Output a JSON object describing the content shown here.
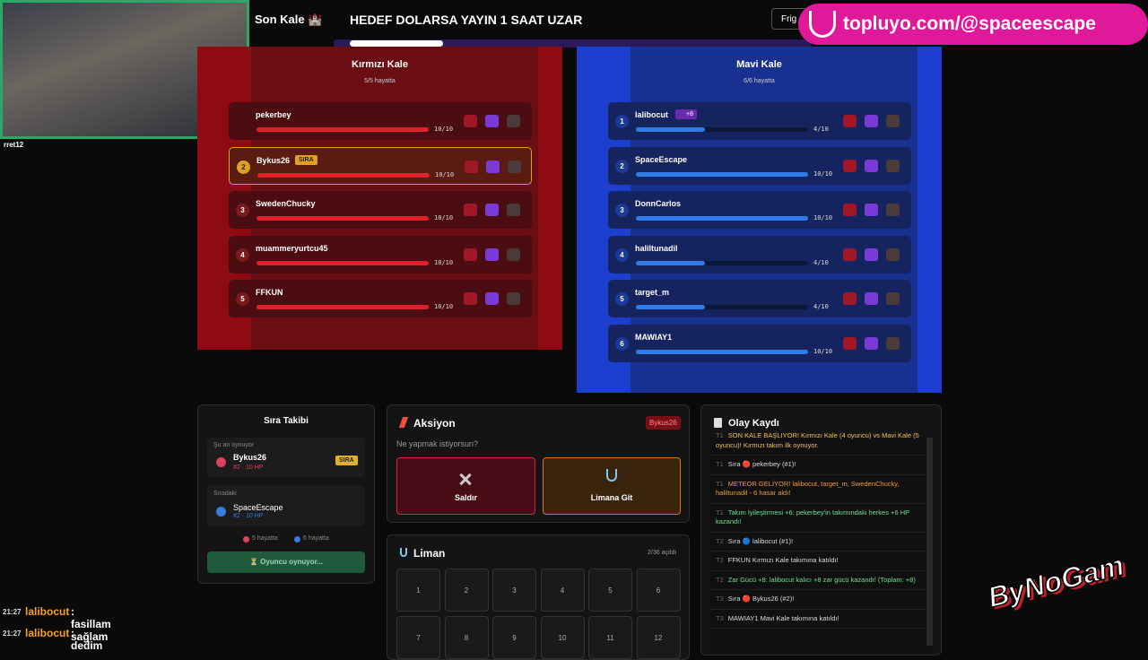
{
  "stream": {
    "webcam_label": "rret12",
    "overlay": "topluyo.com/@spaceescape",
    "logo": "ByNoGam"
  },
  "header": {
    "title": "Son Kale 🏰",
    "banner": "HEDEF DOLARSA YAYIN 1 SAAT UZAR",
    "button": "Frig"
  },
  "teams": [
    {
      "name": "Kırmızı Kale",
      "status": "5/5 hayatta",
      "hp_max": 10,
      "players": [
        {
          "name": "pekerbey",
          "hp": 10,
          "hp_label": "10/10"
        },
        {
          "rank": 2,
          "name": "Bykus26",
          "tag": "SIRA",
          "hp": 10,
          "hp_label": "10/10"
        },
        {
          "rank": 3,
          "name": "SwedenChucky",
          "hp": 10,
          "hp_label": "10/10"
        },
        {
          "rank": 4,
          "name": "muammeryurtcu45",
          "hp": 10,
          "hp_label": "10/10"
        },
        {
          "rank": 5,
          "name": "FFKUN",
          "hp": 10,
          "hp_label": "10/10"
        }
      ]
    },
    {
      "name": "Mavi Kale",
      "status": "6/6 hayatta",
      "hp_max": 10,
      "players": [
        {
          "rank": 1,
          "name": "lalibocut",
          "badge": "+8",
          "hp": 4,
          "hp_label": "4/10"
        },
        {
          "rank": 2,
          "name": "SpaceEscape",
          "hp": 10,
          "hp_label": "10/10"
        },
        {
          "rank": 3,
          "name": "DonnCarlos",
          "hp": 10,
          "hp_label": "10/10"
        },
        {
          "rank": 4,
          "name": "haliltunadil",
          "hp": 4,
          "hp_label": "4/10"
        },
        {
          "rank": 5,
          "name": "target_m",
          "hp": 4,
          "hp_label": "4/10"
        },
        {
          "rank": 6,
          "name": "MAWIAY1",
          "hp": 10,
          "hp_label": "10/10"
        }
      ]
    }
  ],
  "turn": {
    "title": "Sıra Takibi",
    "now_label": "Şu an oynuyor",
    "current": {
      "name": "Bykus26",
      "info": "#2 · 10 HP",
      "tag": "SIRA"
    },
    "next_label": "Sıradaki",
    "next": {
      "name": "SpaceEscape",
      "info": "#2 · 10 HP"
    },
    "counts": [
      "5 hayatta",
      "6 hayatta"
    ],
    "button": "⏳ Oyuncu oynuyor..."
  },
  "action": {
    "title": "Aksiyon",
    "badge": "Bykus26",
    "prompt": "Ne yapmak istiyorsun?",
    "buttons": [
      "Saldır",
      "Limana Git"
    ]
  },
  "harbor": {
    "title": "Liman",
    "progress": "2/36 açıldı",
    "cells": [
      1,
      2,
      3,
      4,
      5,
      6,
      7,
      8,
      9,
      10,
      11,
      12
    ]
  },
  "log": {
    "title": "Olay Kaydı",
    "events": [
      {
        "round": "T1",
        "text": "SON KALE BAŞLIYOR! Kırmızı Kale (4 oyuncu) vs Mavi Kale (5 oyuncu)! Kırmızı takım ilk oynuyor.",
        "color": "#f2c14e"
      },
      {
        "round": "T1",
        "text": "Sıra 🔴 pekerbey (#1)!"
      },
      {
        "round": "T1",
        "text": "METEOR GELİYOR! lalibocut, target_m, SwedenChucky, haliltunadil - 6 hasar aldı!",
        "color": "#f29b38"
      },
      {
        "round": "T1",
        "text": "Takım İyileştirmesi +6: pekerbey'in takımındaki herkes +6 HP kazandı!",
        "color": "#6fe08a"
      },
      {
        "round": "T2",
        "text": "Sıra 🔵 lalibocut (#1)!"
      },
      {
        "round": "T2",
        "text": "FFKUN Kırmızı Kale takımına katıldı!"
      },
      {
        "round": "T2",
        "text": "Zar Gücü +8: lalibocut kalıcı +8 zar gücü kazandı! (Toplam: +8)",
        "color": "#6fe08a"
      },
      {
        "round": "T3",
        "text": "Sıra 🔴 Bykus26 (#2)!"
      },
      {
        "round": "T3",
        "text": "MAWIAY1 Mavi Kale takımına katıldı!"
      }
    ]
  },
  "chat": [
    {
      "time": "21:27",
      "user": "lalibocut",
      "message": ": fasillam sağlam"
    },
    {
      "time": "21:27",
      "user": "lalibocut",
      "message": ": dedim"
    }
  ]
}
